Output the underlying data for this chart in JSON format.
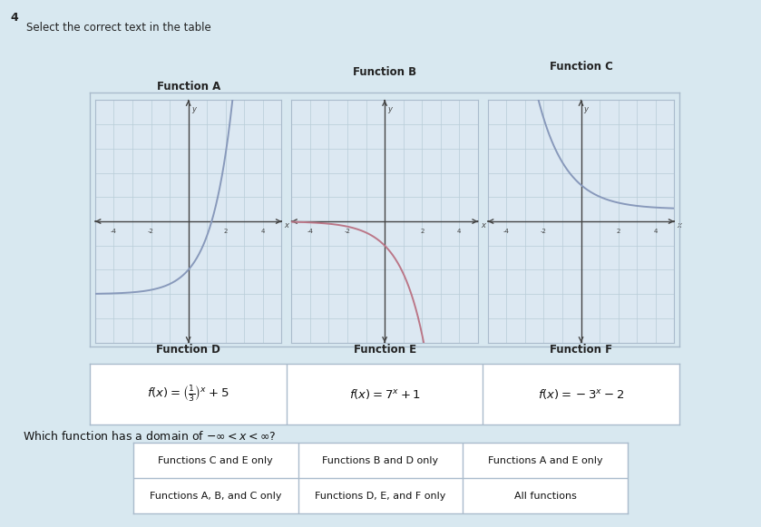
{
  "title_question_number": "4",
  "instruction": "Select the correct text in the table",
  "background_color": "#d8e8f0",
  "graph_bg": "#dce8f2",
  "graph_grid_color": "#b8ccd8",
  "axis_color": "#444444",
  "curve_color_A": "#8899bb",
  "curve_color_B": "#bb7788",
  "curve_color_C": "#8899bb",
  "functions_top": [
    "Function A",
    "Function B",
    "Function C"
  ],
  "functions_bottom": [
    "Function D",
    "Function E",
    "Function F"
  ],
  "formula_D": "$f(x) = \\left(\\frac{1}{3}\\right)^{x} + 5$",
  "formula_E": "$f(x) = 7^{x} + 1$",
  "formula_F": "$f(x) = -3^{x} - 2$",
  "question": "Which function has a domain of $-\\infty < x < \\infty$?",
  "answers_row1": [
    "Functions C and E only",
    "Functions B and D only",
    "Functions A and E only"
  ],
  "answers_row2": [
    "Functions A, B, and C only",
    "Functions D, E, and F only",
    "All functions"
  ],
  "graph_xlim": [
    -5,
    5
  ],
  "graph_ylim": [
    -5,
    5
  ],
  "tick_values": [
    -4,
    -2,
    2,
    4
  ],
  "table_border_color": "#aabbcc",
  "formula_border_color": "#aabbcc",
  "white": "#ffffff"
}
